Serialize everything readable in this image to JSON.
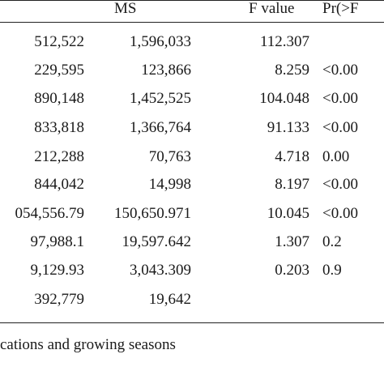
{
  "table": {
    "headers": {
      "ms": "MS",
      "f_value": "F value",
      "pr": "Pr(>F"
    },
    "rows": [
      {
        "ss": "512,522",
        "ms": "1,596,033",
        "f": "112.307",
        "p": ""
      },
      {
        "ss": "229,595",
        "ms": "123,866",
        "f": "8.259",
        "p": "<0.00"
      },
      {
        "ss": "890,148",
        "ms": "1,452,525",
        "f": "104.048",
        "p": "<0.00"
      },
      {
        "ss": "833,818",
        "ms": "1,366,764",
        "f": "91.133",
        "p": "<0.00"
      },
      {
        "ss": "212,288",
        "ms": "70,763",
        "f": "4.718",
        "p": "0.00"
      },
      {
        "ss": "844,042",
        "ms": "14,998",
        "f": "8.197",
        "p": "<0.00"
      },
      {
        "ss": "054,556.79",
        "ms": "150,650.971",
        "f": "10.045",
        "p": "<0.00"
      },
      {
        "ss": "97,988.1",
        "ms": "19,597.642",
        "f": "1.307",
        "p": "0.2"
      },
      {
        "ss": "9,129.93",
        "ms": "3,043.309",
        "f": "0.203",
        "p": "0.9"
      },
      {
        "ss": "392,779",
        "ms": "19,642",
        "f": "",
        "p": ""
      }
    ]
  },
  "footnote": "cations and growing seasons"
}
